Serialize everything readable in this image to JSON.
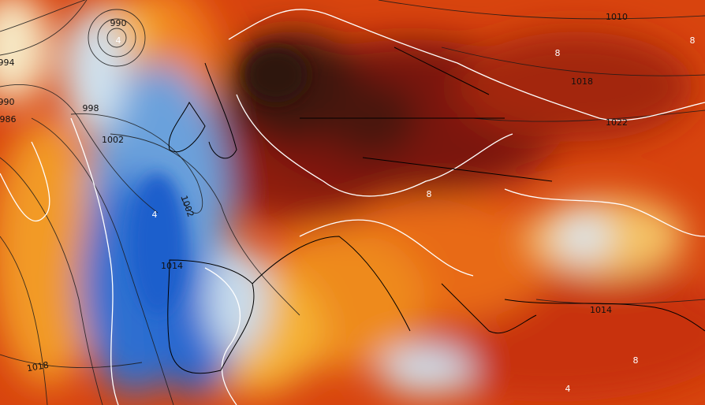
{
  "map": {
    "isobar_labels": [
      "990",
      "994",
      "990",
      "986",
      "998",
      "1002",
      "1002",
      "1014",
      "1018",
      "1010",
      "1018",
      "1022",
      "1014"
    ],
    "anomaly_labels": [
      "4",
      "8",
      "8",
      "8",
      "4",
      "8",
      "4"
    ]
  }
}
